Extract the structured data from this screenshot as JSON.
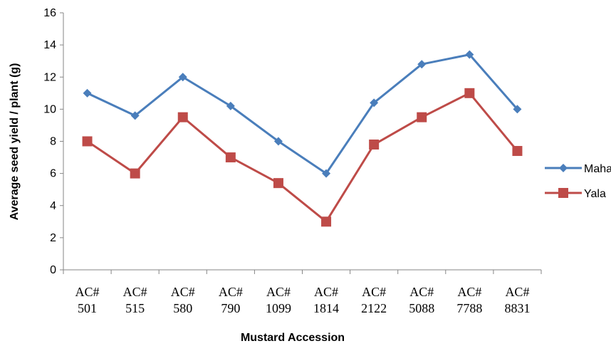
{
  "chart_data": {
    "type": "line",
    "xlabel": "Mustard Accession",
    "ylabel": "Average seed yield / plant (g)",
    "ylim": [
      0,
      16
    ],
    "yticks": [
      "0",
      "2",
      "4",
      "6",
      "8",
      "10",
      "12",
      "14",
      "16"
    ],
    "grid": false,
    "legend_position": "right",
    "categories": [
      [
        "AC#",
        "501"
      ],
      [
        "AC#",
        "515"
      ],
      [
        "AC#",
        "580"
      ],
      [
        "AC#",
        "790"
      ],
      [
        "AC#",
        "1099"
      ],
      [
        "AC#",
        "1814"
      ],
      [
        "AC#",
        "2122"
      ],
      [
        "AC#",
        "5088"
      ],
      [
        "AC#",
        "7788"
      ],
      [
        "AC#",
        "8831"
      ]
    ],
    "series": [
      {
        "name": "Maha",
        "color": "#4A7EBB",
        "marker": "diamond",
        "values": [
          11,
          9.6,
          12,
          10.2,
          8,
          6,
          10.4,
          12.8,
          13.4,
          10
        ]
      },
      {
        "name": "Yala",
        "color": "#BE4B48",
        "marker": "square",
        "values": [
          8,
          6,
          9.5,
          7,
          5.4,
          3,
          7.8,
          9.5,
          11,
          7.4
        ]
      }
    ]
  }
}
